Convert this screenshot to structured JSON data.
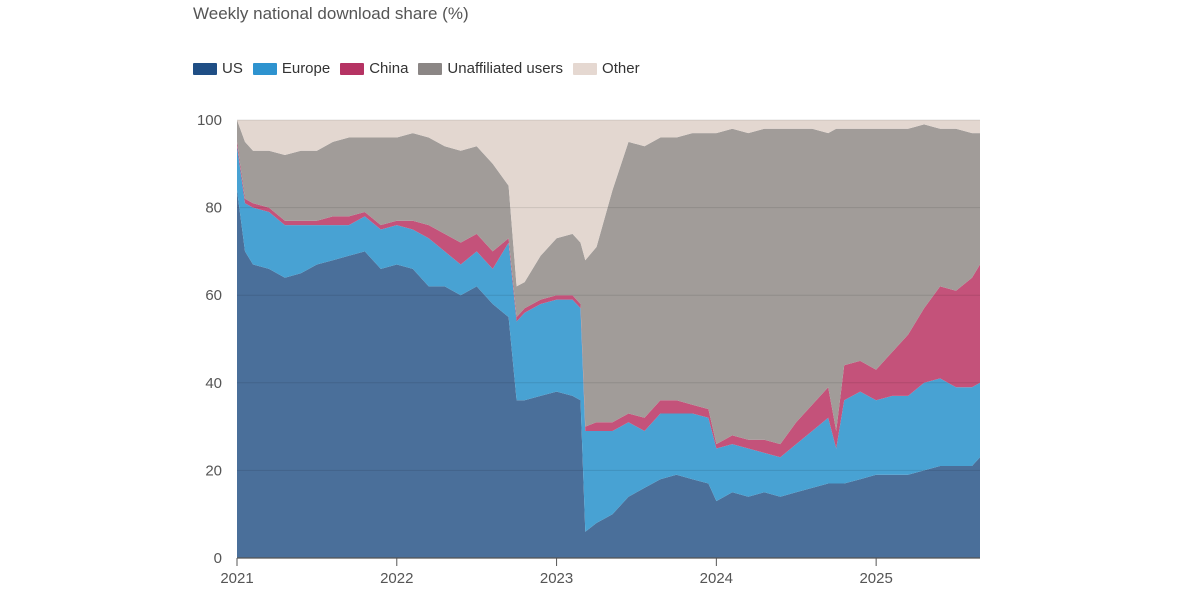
{
  "chart_data": {
    "type": "area",
    "title": "Weekly national download share (%)",
    "xlabel": "",
    "ylabel": "",
    "ylim": [
      0,
      100
    ],
    "xlim": [
      2021.0,
      2025.65
    ],
    "y_ticks": [
      "0",
      "20",
      "40",
      "60",
      "80",
      "100"
    ],
    "x_ticks": [
      "2021",
      "2022",
      "2023",
      "2024",
      "2025"
    ],
    "colors": {
      "US": "#4a6f9a",
      "Europe": "#48a2d3",
      "China": "#c4527a",
      "Unaffiliated users": "#a19c99",
      "Other": "#e3d7d0",
      "legend_US": "#1f4e85",
      "legend_Europe": "#2e93cf",
      "legend_China": "#b53363",
      "legend_Unaffiliated users": "#8b8685",
      "legend_Other": "#e5d8d1"
    },
    "x": [
      2021.0,
      2021.05,
      2021.1,
      2021.2,
      2021.3,
      2021.4,
      2021.5,
      2021.6,
      2021.7,
      2021.8,
      2021.9,
      2022.0,
      2022.1,
      2022.2,
      2022.3,
      2022.4,
      2022.5,
      2022.6,
      2022.7,
      2022.75,
      2022.8,
      2022.9,
      2023.0,
      2023.1,
      2023.15,
      2023.18,
      2023.25,
      2023.35,
      2023.45,
      2023.55,
      2023.65,
      2023.75,
      2023.85,
      2023.95,
      2024.0,
      2024.1,
      2024.2,
      2024.3,
      2024.4,
      2024.5,
      2024.6,
      2024.7,
      2024.75,
      2024.8,
      2024.9,
      2025.0,
      2025.1,
      2025.2,
      2025.3,
      2025.4,
      2025.5,
      2025.6,
      2025.65
    ],
    "series": [
      {
        "name": "US",
        "values": [
          84,
          70,
          67,
          66,
          64,
          65,
          67,
          68,
          69,
          70,
          66,
          67,
          66,
          62,
          62,
          60,
          62,
          58,
          55,
          36,
          36,
          37,
          38,
          37,
          36,
          6,
          8,
          10,
          14,
          16,
          18,
          19,
          18,
          17,
          13,
          15,
          14,
          15,
          14,
          15,
          16,
          17,
          17,
          17,
          18,
          19,
          19,
          19,
          20,
          21,
          21,
          21,
          23
        ]
      },
      {
        "name": "Europe",
        "values": [
          10,
          11,
          13,
          13,
          12,
          11,
          9,
          8,
          7,
          8,
          9,
          9,
          9,
          11,
          8,
          7,
          8,
          8,
          17,
          18,
          20,
          21,
          21,
          22,
          21,
          23,
          21,
          19,
          17,
          13,
          15,
          14,
          15,
          15,
          12,
          11,
          11,
          9,
          9,
          11,
          13,
          15,
          8,
          19,
          20,
          17,
          18,
          18,
          20,
          20,
          18,
          18,
          17
        ]
      },
      {
        "name": "China",
        "values": [
          1,
          1,
          1,
          1,
          1,
          1,
          1,
          2,
          2,
          1,
          1,
          1,
          2,
          3,
          4,
          5,
          4,
          4,
          1,
          1,
          1,
          1,
          1,
          1,
          1,
          1,
          2,
          2,
          2,
          3,
          3,
          3,
          2,
          2,
          1,
          2,
          2,
          3,
          3,
          5,
          6,
          7,
          4,
          8,
          7,
          7,
          10,
          14,
          17,
          21,
          22,
          25,
          27
        ]
      },
      {
        "name": "Unaffiliated users",
        "values": [
          5,
          13,
          12,
          13,
          15,
          16,
          16,
          17,
          18,
          17,
          20,
          19,
          20,
          20,
          20,
          21,
          20,
          20,
          12,
          7,
          6,
          10,
          13,
          14,
          14,
          38,
          40,
          53,
          62,
          62,
          60,
          60,
          62,
          63,
          71,
          70,
          70,
          71,
          72,
          67,
          63,
          58,
          69,
          54,
          53,
          55,
          51,
          47,
          42,
          36,
          37,
          33,
          30
        ]
      },
      {
        "name": "Other",
        "values": [
          0,
          5,
          7,
          7,
          8,
          7,
          7,
          5,
          4,
          4,
          4,
          4,
          3,
          4,
          6,
          7,
          6,
          10,
          15,
          38,
          37,
          31,
          27,
          26,
          28,
          32,
          29,
          16,
          5,
          6,
          4,
          4,
          3,
          3,
          3,
          2,
          3,
          2,
          2,
          2,
          2,
          3,
          2,
          2,
          2,
          2,
          2,
          2,
          1,
          2,
          2,
          3,
          3
        ]
      }
    ]
  }
}
